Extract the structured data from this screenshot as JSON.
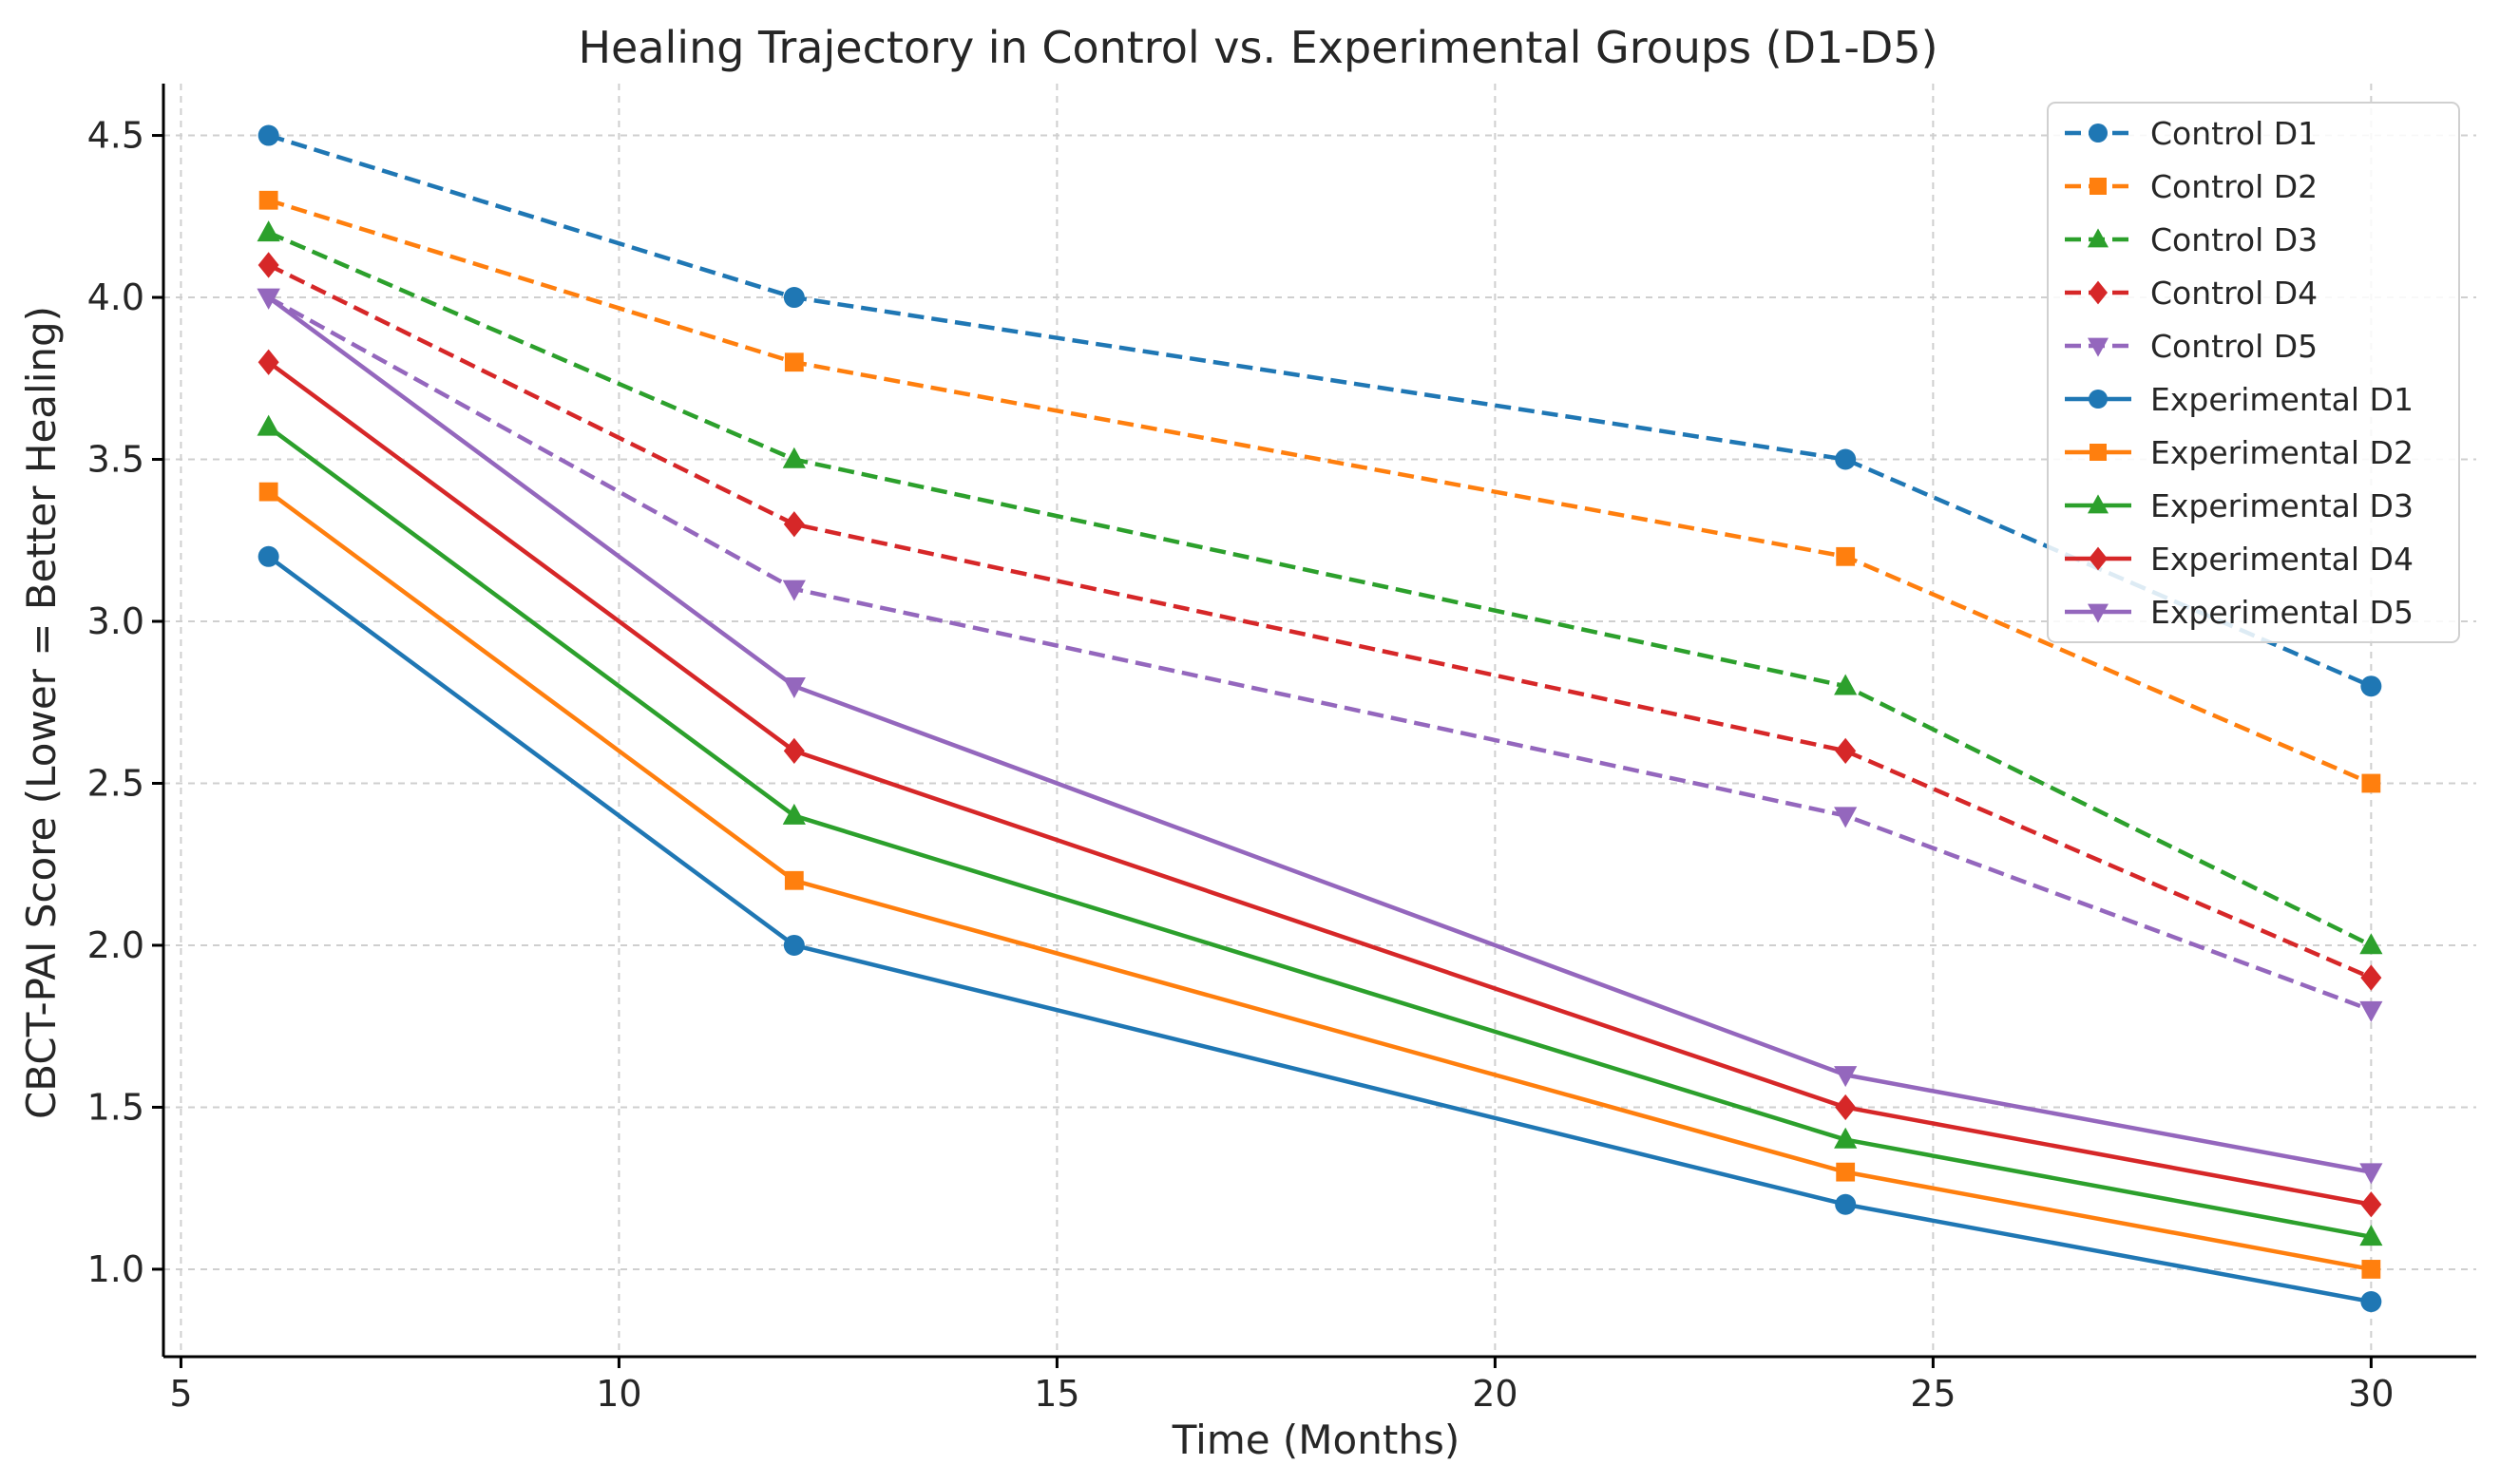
{
  "chart_data": {
    "type": "line",
    "title": "Healing Trajectory in Control vs. Experimental Groups (D1-D5)",
    "xlabel": "Time (Months)",
    "ylabel": "CBCT-PAI Score (Lower = Better Healing)",
    "xlim": [
      4.8,
      31.2
    ],
    "ylim": [
      0.73,
      4.66
    ],
    "x_ticks": [
      5,
      10,
      15,
      20,
      25,
      30
    ],
    "y_ticks": [
      1.0,
      1.5,
      2.0,
      2.5,
      3.0,
      3.5,
      4.0,
      4.5
    ],
    "x_tick_labels": [
      "5",
      "10",
      "15",
      "20",
      "25",
      "30"
    ],
    "y_tick_labels": [
      "1.0",
      "1.5",
      "2.0",
      "2.5",
      "3.0",
      "3.5",
      "4.0",
      "4.5"
    ],
    "grid": true,
    "legend_position": "top-right",
    "x": [
      6,
      12,
      24,
      30
    ],
    "series": [
      {
        "name": "Control D1",
        "values": [
          4.5,
          4.0,
          3.5,
          2.8
        ],
        "color": "#1f77b4",
        "marker": "circle",
        "dashed": true
      },
      {
        "name": "Control D2",
        "values": [
          4.3,
          3.8,
          3.2,
          2.5
        ],
        "color": "#ff7f0e",
        "marker": "square",
        "dashed": true
      },
      {
        "name": "Control D3",
        "values": [
          4.2,
          3.5,
          2.8,
          2.0
        ],
        "color": "#2ca02c",
        "marker": "triangle-up",
        "dashed": true
      },
      {
        "name": "Control D4",
        "values": [
          4.1,
          3.3,
          2.6,
          1.9
        ],
        "color": "#d62728",
        "marker": "diamond",
        "dashed": true
      },
      {
        "name": "Control D5",
        "values": [
          4.0,
          3.1,
          2.4,
          1.8
        ],
        "color": "#9467bd",
        "marker": "triangle-down",
        "dashed": true
      },
      {
        "name": "Experimental D1",
        "values": [
          3.2,
          2.0,
          1.2,
          0.9
        ],
        "color": "#1f77b4",
        "marker": "circle",
        "dashed": false
      },
      {
        "name": "Experimental D2",
        "values": [
          3.4,
          2.2,
          1.3,
          1.0
        ],
        "color": "#ff7f0e",
        "marker": "square",
        "dashed": false
      },
      {
        "name": "Experimental D3",
        "values": [
          3.6,
          2.4,
          1.4,
          1.1
        ],
        "color": "#2ca02c",
        "marker": "triangle-up",
        "dashed": false
      },
      {
        "name": "Experimental D4",
        "values": [
          3.8,
          2.6,
          1.5,
          1.2
        ],
        "color": "#d62728",
        "marker": "diamond",
        "dashed": false
      },
      {
        "name": "Experimental D5",
        "values": [
          4.0,
          2.8,
          1.6,
          1.3
        ],
        "color": "#9467bd",
        "marker": "triangle-down",
        "dashed": false
      }
    ]
  }
}
